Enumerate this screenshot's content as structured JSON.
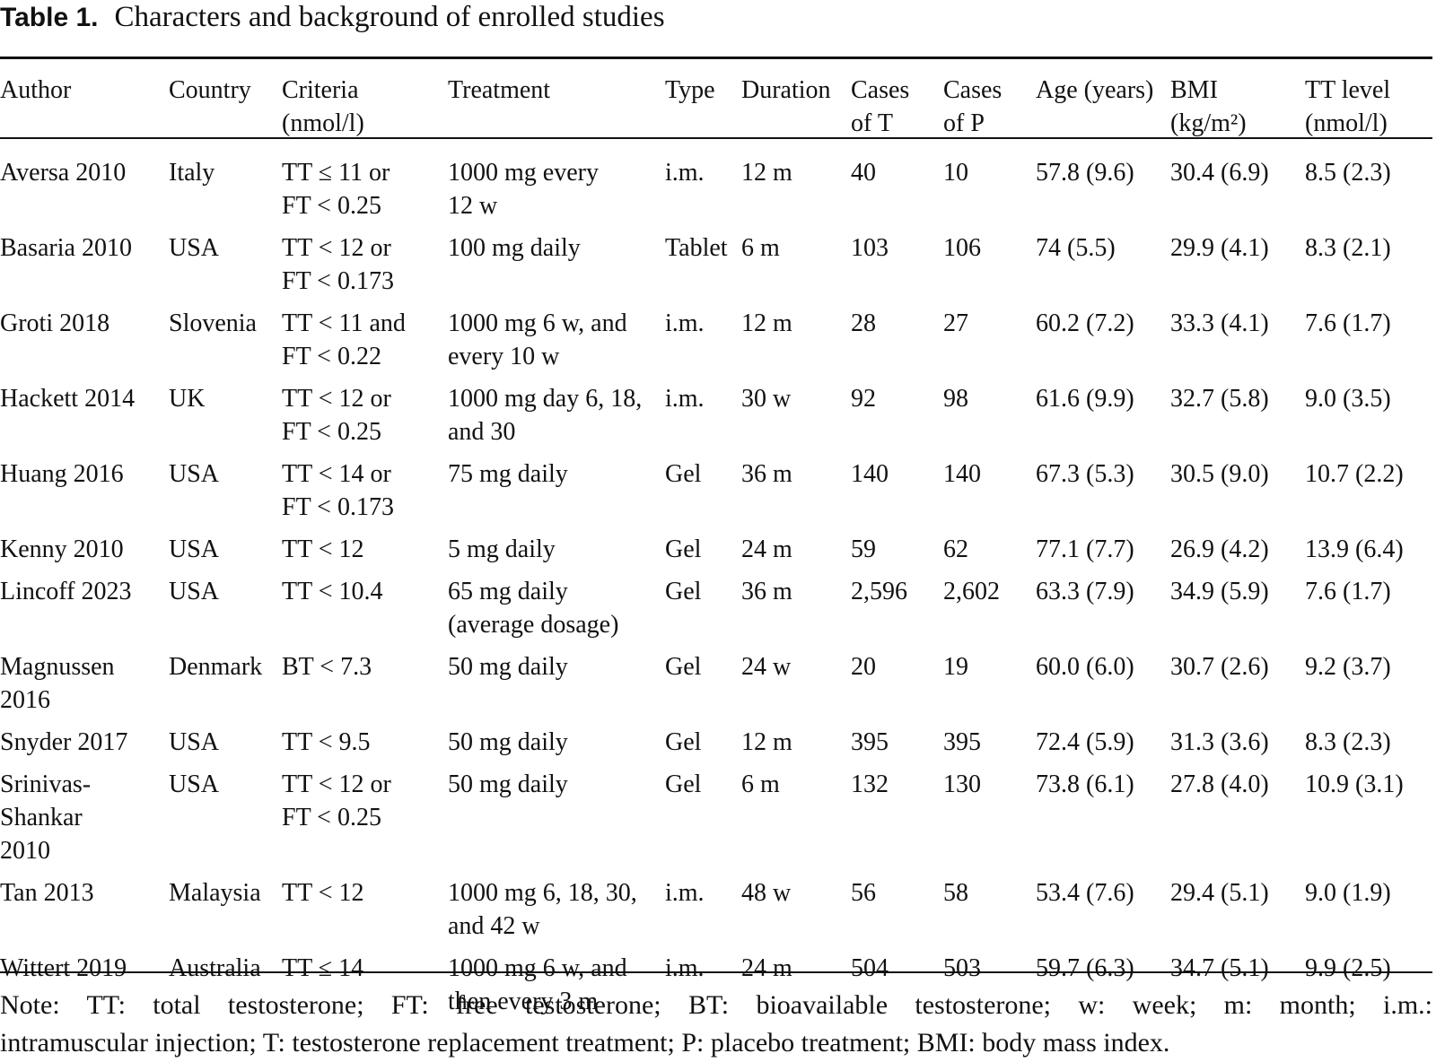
{
  "caption": {
    "label": "Table 1.",
    "title": "Characters and background of enrolled studies"
  },
  "table": {
    "headers": [
      {
        "lines": [
          "Author"
        ]
      },
      {
        "lines": [
          "Country"
        ]
      },
      {
        "lines": [
          "Criteria",
          "(nmol/l)"
        ]
      },
      {
        "lines": [
          "Treatment"
        ]
      },
      {
        "lines": [
          "Type"
        ]
      },
      {
        "lines": [
          "Duration"
        ]
      },
      {
        "lines": [
          "Cases",
          "of T"
        ]
      },
      {
        "lines": [
          "Cases",
          "of P"
        ]
      },
      {
        "lines": [
          "Age (years)"
        ]
      },
      {
        "lines": [
          "BMI",
          "(kg/m²)"
        ]
      },
      {
        "lines": [
          "TT level",
          "(nmol/l)"
        ]
      }
    ],
    "rows": [
      [
        [
          "Aversa 2010"
        ],
        [
          "Italy"
        ],
        [
          "TT ≤ 11 or",
          "FT < 0.25"
        ],
        [
          "1000 mg every",
          "12 w"
        ],
        [
          "i.m."
        ],
        [
          "12 m"
        ],
        [
          "40"
        ],
        [
          "10"
        ],
        [
          "57.8 (9.6)"
        ],
        [
          "30.4 (6.9)"
        ],
        [
          "8.5 (2.3)"
        ]
      ],
      [
        [
          "Basaria 2010"
        ],
        [
          "USA"
        ],
        [
          "TT < 12 or",
          "FT < 0.173"
        ],
        [
          "100 mg daily"
        ],
        [
          "Tablet"
        ],
        [
          "6 m"
        ],
        [
          "103"
        ],
        [
          "106"
        ],
        [
          "74 (5.5)"
        ],
        [
          "29.9 (4.1)"
        ],
        [
          "8.3 (2.1)"
        ]
      ],
      [
        [
          "Groti 2018"
        ],
        [
          "Slovenia"
        ],
        [
          "TT < 11 and",
          "FT < 0.22"
        ],
        [
          "1000 mg 6 w, and",
          "every 10 w"
        ],
        [
          "i.m."
        ],
        [
          "12 m"
        ],
        [
          "28"
        ],
        [
          "27"
        ],
        [
          "60.2 (7.2)"
        ],
        [
          "33.3 (4.1)"
        ],
        [
          "7.6 (1.7)"
        ]
      ],
      [
        [
          "Hackett 2014"
        ],
        [
          "UK"
        ],
        [
          "TT < 12 or",
          "FT < 0.25"
        ],
        [
          "1000 mg day 6, 18,",
          "and 30"
        ],
        [
          "i.m."
        ],
        [
          "30 w"
        ],
        [
          "92"
        ],
        [
          "98"
        ],
        [
          "61.6 (9.9)"
        ],
        [
          "32.7 (5.8)"
        ],
        [
          "9.0 (3.5)"
        ]
      ],
      [
        [
          "Huang 2016"
        ],
        [
          "USA"
        ],
        [
          "TT < 14 or",
          "FT < 0.173"
        ],
        [
          "75 mg daily"
        ],
        [
          "Gel"
        ],
        [
          "36 m"
        ],
        [
          "140"
        ],
        [
          "140"
        ],
        [
          "67.3 (5.3)"
        ],
        [
          "30.5 (9.0)"
        ],
        [
          "10.7 (2.2)"
        ]
      ],
      [
        [
          "Kenny 2010"
        ],
        [
          "USA"
        ],
        [
          "TT < 12"
        ],
        [
          "5 mg daily"
        ],
        [
          "Gel"
        ],
        [
          "24 m"
        ],
        [
          "59"
        ],
        [
          "62"
        ],
        [
          "77.1 (7.7)"
        ],
        [
          "26.9 (4.2)"
        ],
        [
          "13.9 (6.4)"
        ]
      ],
      [
        [
          "Lincoff 2023"
        ],
        [
          "USA"
        ],
        [
          "TT < 10.4"
        ],
        [
          "65 mg daily",
          "(average dosage)"
        ],
        [
          "Gel"
        ],
        [
          "36 m"
        ],
        [
          "2,596"
        ],
        [
          "2,602"
        ],
        [
          "63.3 (7.9)"
        ],
        [
          "34.9 (5.9)"
        ],
        [
          "7.6 (1.7)"
        ]
      ],
      [
        [
          "Magnussen",
          "2016"
        ],
        [
          "Denmark"
        ],
        [
          "BT < 7.3"
        ],
        [
          "50 mg daily"
        ],
        [
          "Gel"
        ],
        [
          "24 w"
        ],
        [
          "20"
        ],
        [
          "19"
        ],
        [
          "60.0 (6.0)"
        ],
        [
          "30.7 (2.6)"
        ],
        [
          "9.2 (3.7)"
        ]
      ],
      [
        [
          "Snyder 2017"
        ],
        [
          "USA"
        ],
        [
          "TT < 9.5"
        ],
        [
          "50 mg daily"
        ],
        [
          "Gel"
        ],
        [
          "12 m"
        ],
        [
          "395"
        ],
        [
          "395"
        ],
        [
          "72.4 (5.9)"
        ],
        [
          "31.3 (3.6)"
        ],
        [
          "8.3 (2.3)"
        ]
      ],
      [
        [
          "Srinivas-",
          "Shankar",
          "2010"
        ],
        [
          "USA"
        ],
        [
          "TT < 12 or",
          "FT < 0.25"
        ],
        [
          "50 mg daily"
        ],
        [
          "Gel"
        ],
        [
          "6 m"
        ],
        [
          "132"
        ],
        [
          "130"
        ],
        [
          "73.8 (6.1)"
        ],
        [
          "27.8 (4.0)"
        ],
        [
          "10.9 (3.1)"
        ]
      ],
      [
        [
          "Tan 2013"
        ],
        [
          "Malaysia"
        ],
        [
          "TT < 12"
        ],
        [
          "1000 mg 6, 18, 30,",
          "and 42 w"
        ],
        [
          "i.m."
        ],
        [
          "48 w"
        ],
        [
          "56"
        ],
        [
          "58"
        ],
        [
          "53.4 (7.6)"
        ],
        [
          "29.4 (5.1)"
        ],
        [
          "9.0 (1.9)"
        ]
      ],
      [
        [
          "Wittert 2019"
        ],
        [
          "Australia"
        ],
        [
          "TT ≤ 14"
        ],
        [
          "1000 mg 6 w, and",
          "then every 3 m"
        ],
        [
          "i.m."
        ],
        [
          "24 m"
        ],
        [
          "504"
        ],
        [
          "503"
        ],
        [
          "59.7 (6.3)"
        ],
        [
          "34.7 (5.1)"
        ],
        [
          "9.9 (2.5)"
        ]
      ]
    ]
  },
  "note": {
    "line1": "Note: TT: total testosterone; FT: free testosterone; BT: bioavailable testosterone; w: week; m: month; i.m.:",
    "line2": "intramuscular injection; T: testosterone replacement treatment; P: placebo treatment; BMI: body mass index."
  }
}
